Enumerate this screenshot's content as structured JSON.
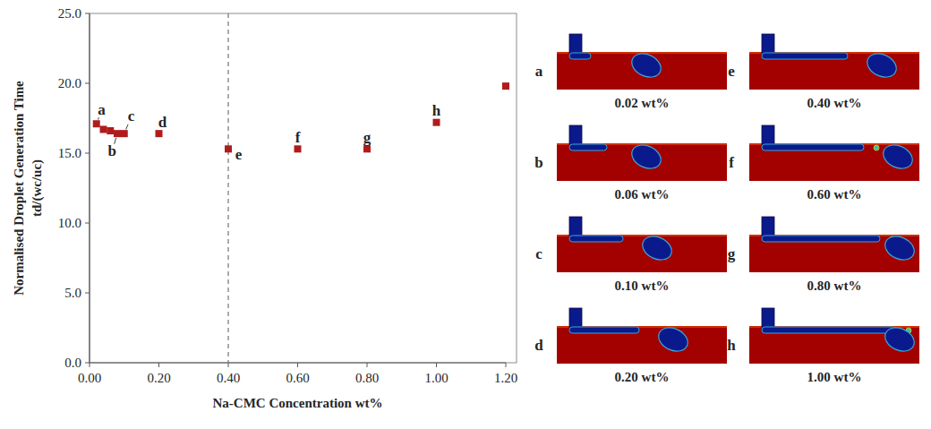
{
  "chart_data": {
    "type": "scatter",
    "x_label": "Na-CMC Concentration wt%",
    "y_label": [
      "Normalised Droplet Generation Time",
      "td/(wc/uc)"
    ],
    "x": [
      0.02,
      0.04,
      0.06,
      0.08,
      0.1,
      0.2,
      0.4,
      0.6,
      0.8,
      1.0,
      1.2
    ],
    "values": [
      17.1,
      16.7,
      16.6,
      16.4,
      16.4,
      16.4,
      15.3,
      15.3,
      15.3,
      17.2,
      19.8
    ],
    "color": "#b01c1c",
    "marker": "square",
    "xlim": [
      0,
      1.2
    ],
    "xticks": [
      {
        "value": 0,
        "label": "0.00"
      },
      {
        "value": 0.2,
        "label": "0.20"
      },
      {
        "value": 0.4,
        "label": "0.40"
      },
      {
        "value": 0.6,
        "label": "0.60"
      },
      {
        "value": 0.8,
        "label": "0.80"
      },
      {
        "value": 1.0,
        "label": "1.00"
      },
      {
        "value": 1.2,
        "label": "1.20"
      }
    ],
    "ylim": [
      0,
      25
    ],
    "yticks": [
      {
        "value": 0,
        "label": "0.0"
      },
      {
        "value": 5,
        "label": "5.0"
      },
      {
        "value": 10,
        "label": "10.0"
      },
      {
        "value": 15,
        "label": "15.0"
      },
      {
        "value": 20,
        "label": "20.0"
      },
      {
        "value": 25,
        "label": "25.0"
      }
    ],
    "vline": 0.4,
    "annotations": [
      {
        "text": "a",
        "x": 0.035,
        "y": 18.1
      },
      {
        "text": "b",
        "x": 0.065,
        "y": 15.1
      },
      {
        "text": "c",
        "x": 0.12,
        "y": 17.6
      },
      {
        "text": "d",
        "x": 0.21,
        "y": 17.2
      },
      {
        "text": "e",
        "x": 0.43,
        "y": 14.9
      },
      {
        "text": "f",
        "x": 0.6,
        "y": 16.1
      },
      {
        "text": "g",
        "x": 0.8,
        "y": 16.1
      },
      {
        "text": "h",
        "x": 1.0,
        "y": 18.0
      }
    ],
    "panels": [
      {
        "letter": "a",
        "label": "0.02 wt%"
      },
      {
        "letter": "b",
        "label": "0.06 wt%"
      },
      {
        "letter": "c",
        "label": "0.10 wt%"
      },
      {
        "letter": "d",
        "label": "0.20 wt%"
      },
      {
        "letter": "e",
        "label": "0.40 wt%"
      },
      {
        "letter": "f",
        "label": "0.60 wt%"
      },
      {
        "letter": "g",
        "label": "0.80 wt%"
      },
      {
        "letter": "h",
        "label": "1.00 wt%"
      }
    ]
  }
}
